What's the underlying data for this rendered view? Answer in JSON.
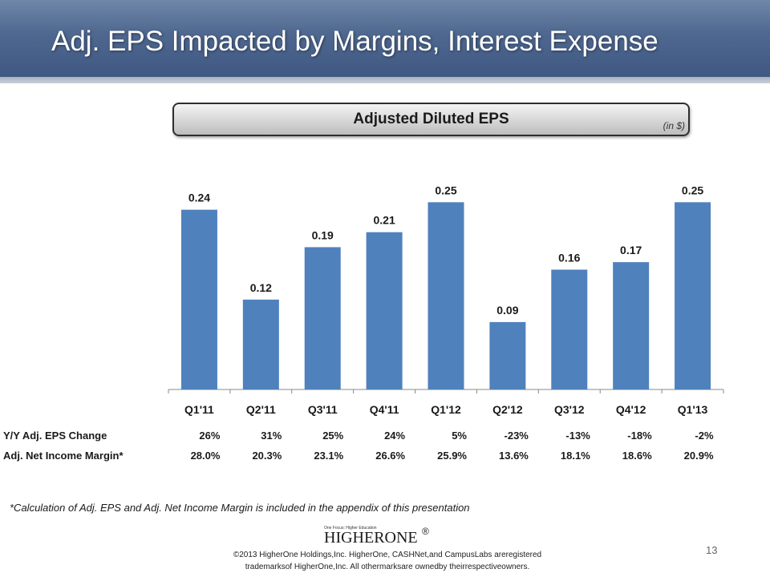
{
  "slide": {
    "title": "Adj. EPS Impacted by Margins, Interest Expense",
    "page_number": "13",
    "footnote": "*Calculation of Adj. EPS and Adj. Net Income Margin is included in the appendix of this presentation",
    "copyright_line1": "©2013 HigherOne Holdings,Inc. HigherOne, CASHNet,and CampusLabs areregistered",
    "copyright_line2": "trademarksof HigherOne,Inc. All othermarksare ownedby theirrespectiveowners.",
    "logo": {
      "tagline": "One Focus: Higher Education",
      "word": "HIGHERONE",
      "registered": "®"
    }
  },
  "chart_data": {
    "type": "bar",
    "title": "Adjusted Diluted EPS",
    "unit_note": "(in $)",
    "categories": [
      "Q1'11",
      "Q2'11",
      "Q3'11",
      "Q4'11",
      "Q1'12",
      "Q2'12",
      "Q3'12",
      "Q4'12",
      "Q1'13"
    ],
    "values": [
      0.24,
      0.12,
      0.19,
      0.21,
      0.25,
      0.09,
      0.16,
      0.17,
      0.25
    ],
    "value_labels": [
      "0.24",
      "0.12",
      "0.19",
      "0.21",
      "0.25",
      "0.09",
      "0.16",
      "0.17",
      "0.25"
    ],
    "ylim": [
      0,
      0.26
    ],
    "bar_color": "#4f81bd",
    "grid": false
  },
  "metrics": [
    {
      "label": "Y/Y Adj. EPS Change",
      "values": [
        "26%",
        "31%",
        "25%",
        "24%",
        "5%",
        "-23%",
        "-13%",
        "-18%",
        "-2%"
      ]
    },
    {
      "label": "Adj. Net Income Margin*",
      "values": [
        "28.0%",
        "20.3%",
        "23.1%",
        "26.6%",
        "25.9%",
        "13.6%",
        "18.1%",
        "18.6%",
        "20.9%"
      ]
    }
  ]
}
